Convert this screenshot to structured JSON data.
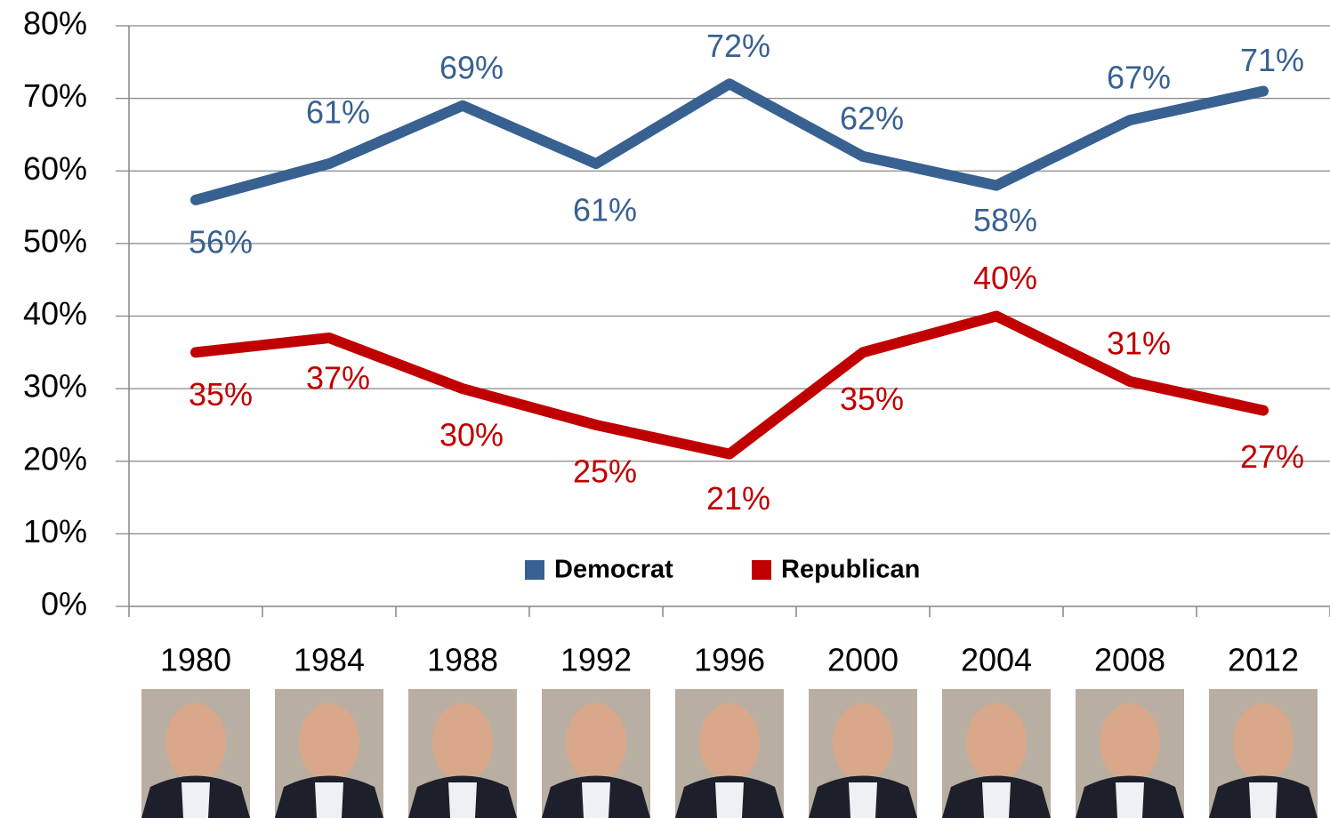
{
  "chart_data": {
    "type": "line",
    "categories": [
      "1980",
      "1984",
      "1988",
      "1992",
      "1996",
      "2000",
      "2004",
      "2008",
      "2012"
    ],
    "series": [
      {
        "name": "Democrat",
        "color": "#386191",
        "values": [
          56,
          61,
          69,
          61,
          72,
          62,
          58,
          67,
          71
        ],
        "value_labels": [
          "56%",
          "61%",
          "69%",
          "61%",
          "72%",
          "62%",
          "58%",
          "67%",
          "71%"
        ]
      },
      {
        "name": "Republican",
        "color": "#c00000",
        "values": [
          35,
          37,
          30,
          25,
          21,
          35,
          40,
          31,
          27
        ],
        "value_labels": [
          "35%",
          "37%",
          "30%",
          "25%",
          "21%",
          "35%",
          "40%",
          "31%",
          "27%"
        ]
      }
    ],
    "ylim": [
      0,
      80
    ],
    "yticks": [
      {
        "value": 0,
        "label": "0%"
      },
      {
        "value": 10,
        "label": "10%"
      },
      {
        "value": 20,
        "label": "20%"
      },
      {
        "value": 30,
        "label": "30%"
      },
      {
        "value": 40,
        "label": "40%"
      },
      {
        "value": 50,
        "label": "50%"
      },
      {
        "value": 60,
        "label": "60%"
      },
      {
        "value": 70,
        "label": "70%"
      },
      {
        "value": 80,
        "label": "80%"
      }
    ],
    "grid": true,
    "legend": "bottom"
  }
}
